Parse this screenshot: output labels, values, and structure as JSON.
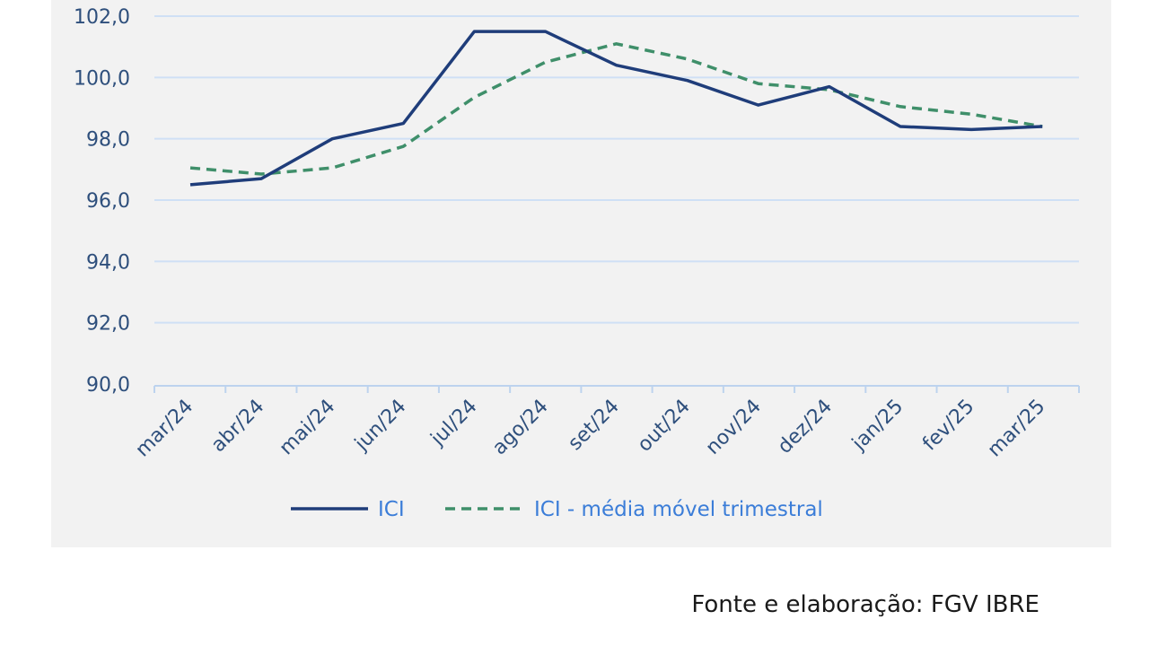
{
  "colors": {
    "panel_background": "#f2f2f2",
    "gridline": "#cfe0f5",
    "axis": "#bdd3ee",
    "tick_text": "#2e4f7c",
    "legend_text": "#3b7dd8",
    "series_ici": "#1f3d7a",
    "series_moving_avg": "#3f8f6a"
  },
  "chart_data": {
    "type": "line",
    "title": "",
    "xlabel": "",
    "ylabel": "",
    "categories": [
      "mar/24",
      "abr/24",
      "mai/24",
      "jun/24",
      "jul/24",
      "ago/24",
      "set/24",
      "out/24",
      "nov/24",
      "dez/24",
      "jan/25",
      "fev/25",
      "mar/25"
    ],
    "ylim": [
      90,
      102
    ],
    "y_ticks": [
      "90,0",
      "92,0",
      "94,0",
      "96,0",
      "98,0",
      "100,0",
      "102,0"
    ],
    "grid": true,
    "legend_position": "bottom",
    "series": [
      {
        "name": "ICI",
        "style": "solid",
        "color": "#1f3d7a",
        "values": [
          96.5,
          96.7,
          98.0,
          98.5,
          101.5,
          101.5,
          100.4,
          99.9,
          99.1,
          99.7,
          98.4,
          98.3,
          98.4
        ]
      },
      {
        "name": "ICI - média móvel trimestral",
        "style": "dashed",
        "color": "#3f8f6a",
        "values": [
          97.05,
          96.85,
          97.05,
          97.75,
          99.35,
          100.5,
          101.1,
          100.6,
          99.8,
          99.6,
          99.05,
          98.8,
          98.4
        ]
      }
    ]
  },
  "footer": {
    "source": "Fonte e elaboração: FGV IBRE"
  }
}
